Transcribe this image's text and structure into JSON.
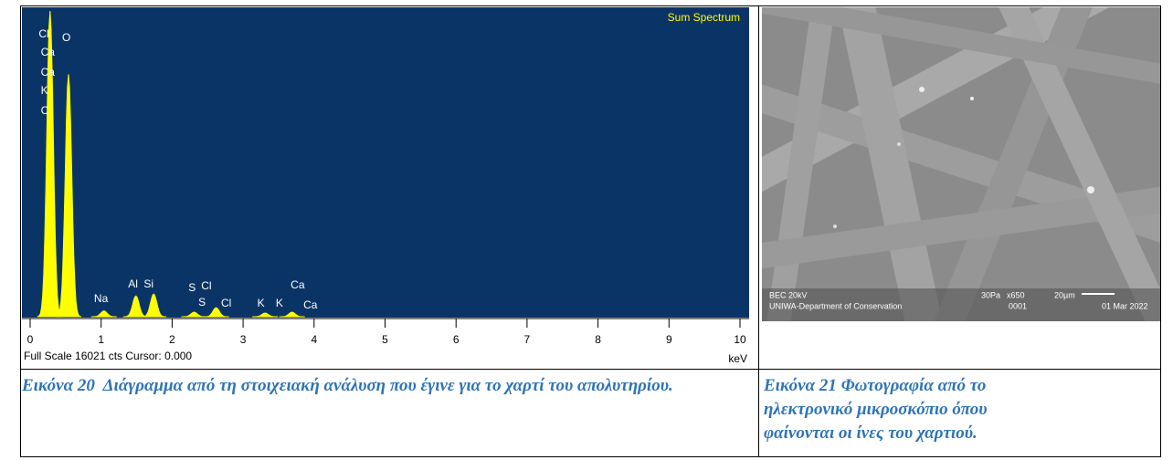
{
  "figures": [
    {
      "chart": {
        "type": "spectrum",
        "title": "Sum Spectrum",
        "x_unit": "keV",
        "footer": "Full Scale 16021 cts Cursor: 0.000",
        "xlim": [
          0,
          10
        ],
        "xticks": [
          0,
          1,
          2,
          3,
          4,
          5,
          6,
          7,
          8,
          9,
          10
        ],
        "ylim": [
          0,
          16021
        ],
        "color": "#ffff00",
        "background": "#0b3466",
        "peaks": [
          {
            "energy": 0.28,
            "counts": 16021
          },
          {
            "energy": 0.54,
            "counts": 12700
          },
          {
            "energy": 1.04,
            "counts": 300
          },
          {
            "energy": 1.49,
            "counts": 1090
          },
          {
            "energy": 1.74,
            "counts": 1190
          },
          {
            "energy": 2.31,
            "counts": 240
          },
          {
            "energy": 2.62,
            "counts": 470
          },
          {
            "energy": 3.31,
            "counts": 190
          },
          {
            "energy": 3.69,
            "counts": 240
          }
        ],
        "annotations": [
          {
            "label": "Cl",
            "energy": 0.12
          },
          {
            "label": "Ca",
            "energy": 0.15
          },
          {
            "label": "Ca",
            "energy": 0.15
          },
          {
            "label": "K",
            "energy": 0.15
          },
          {
            "label": "C",
            "energy": 0.15
          },
          {
            "label": "O",
            "energy": 0.45
          },
          {
            "label": "Na",
            "energy": 0.9
          },
          {
            "label": "Al",
            "energy": 1.38
          },
          {
            "label": "Si",
            "energy": 1.6
          },
          {
            "label": "S",
            "energy": 2.23
          },
          {
            "label": "Cl",
            "energy": 2.41
          },
          {
            "label": "S",
            "energy": 2.37
          },
          {
            "label": "Cl",
            "energy": 2.69
          },
          {
            "label": "K",
            "energy": 3.2
          },
          {
            "label": "K",
            "energy": 3.46
          },
          {
            "label": "Ca",
            "energy": 3.67
          },
          {
            "label": "Ca",
            "energy": 3.85
          }
        ]
      },
      "caption": "Εικόνα 20  Διάγραμμα από τη στοιχειακή ανάλυση που έγινε για το χαρτί του απολυτηρίου."
    },
    {
      "image_labels": {
        "mode": "BEC 20kV",
        "pressure": "30Pa",
        "magnification": "x650",
        "scale": "20µm",
        "lab": "UNIWA-Department of Conservation",
        "number": "0001",
        "date": "01 Mar 2022"
      },
      "caption": "Εικόνα 21 Φωτογραφία από το ηλεκτρονικό μικροσκόπιο όπου φαίνονται οι ίνες του χαρτιού."
    }
  ]
}
